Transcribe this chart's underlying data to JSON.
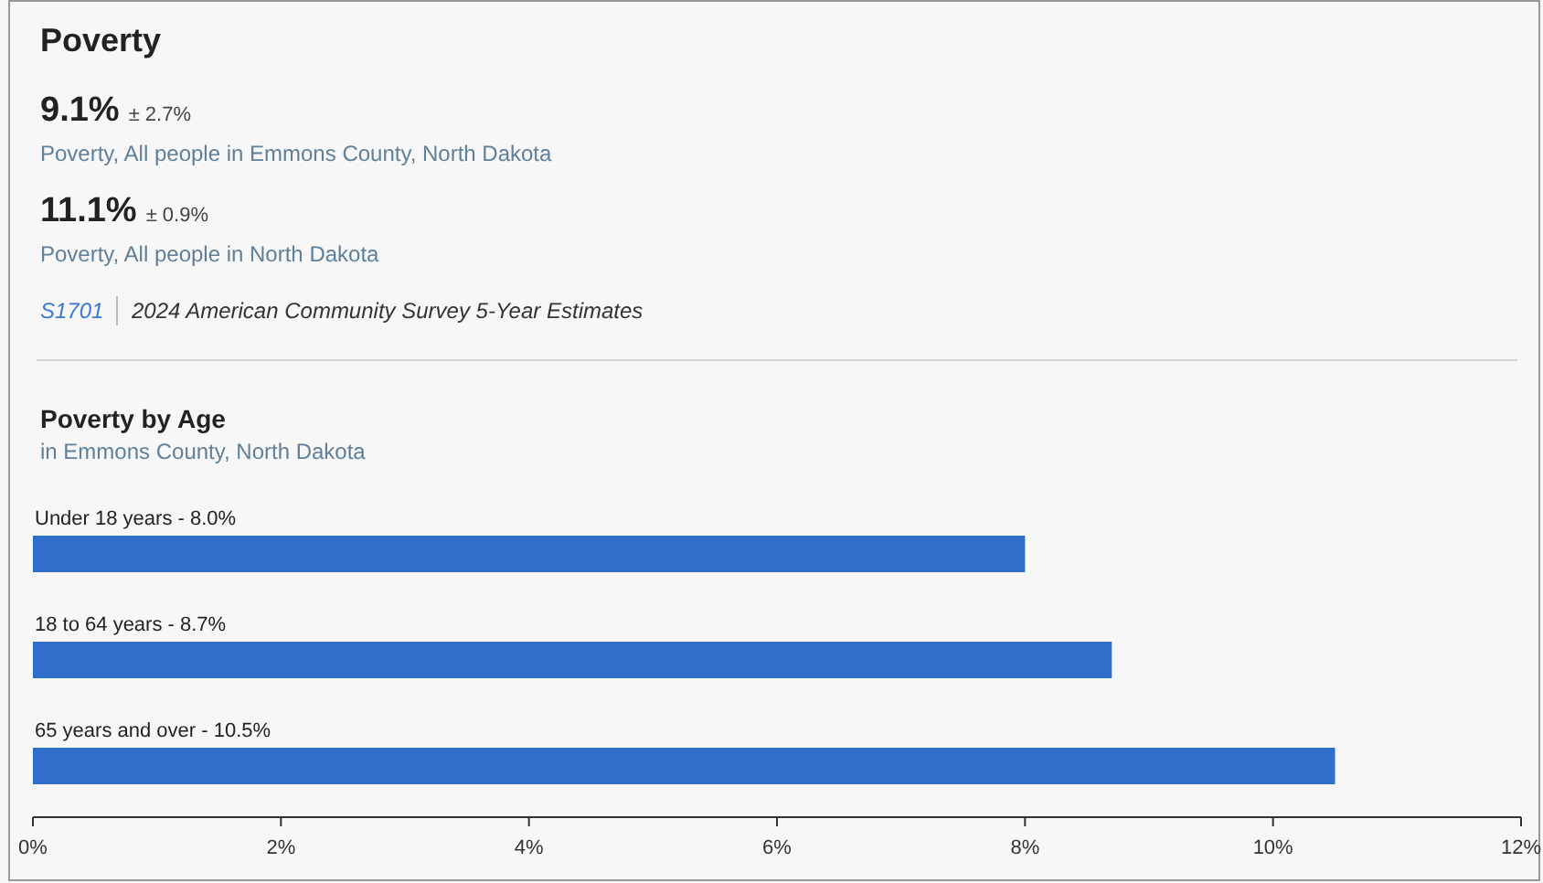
{
  "chart_data": [
    {
      "type": "other",
      "title": "Poverty",
      "annotations": [
        "9.1%",
        "± 2.7%",
        "Poverty, All people in Emmons County, North Dakota",
        "11.1%",
        "± 0.9%",
        "Poverty, All people in North Dakota",
        "S1701",
        "2024 American Community Survey 5-Year Estimates"
      ]
    },
    {
      "type": "bar",
      "orientation": "horizontal",
      "title": "Poverty by Age",
      "subtitle": "in Emmons County, North Dakota",
      "categories": [
        "Under 18 years -",
        "18 to 64 years -",
        "65 years and over -"
      ],
      "values": [
        8.0,
        8.7,
        10.5
      ],
      "value_labels": [
        "8.0%",
        "8.7%",
        "10.5%"
      ],
      "color": "#2f6fcb",
      "xlim": [
        0,
        12
      ],
      "xticks": [
        {
          "value": 0,
          "label": "0%"
        },
        {
          "value": 2,
          "label": "2%"
        },
        {
          "value": 4,
          "label": "4%"
        },
        {
          "value": 6,
          "label": "6%"
        },
        {
          "value": 8,
          "label": "8%"
        },
        {
          "value": 10,
          "label": "10%"
        },
        {
          "value": 12,
          "label": "12%"
        }
      ],
      "grid": false
    }
  ]
}
